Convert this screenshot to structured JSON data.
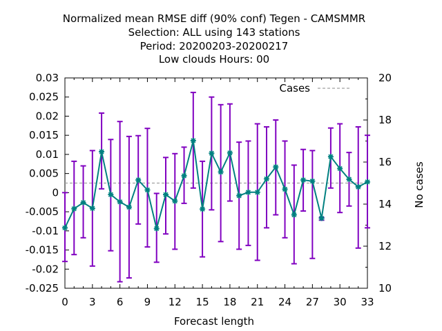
{
  "chart_data": {
    "type": "line",
    "title_lines": [
      "Normalized mean RMSE diff (90% conf) Tegen - CAMSMMR",
      "Selection: ALL using   143 stations",
      "Period: 20200203-20200217",
      "Low clouds   Hours:  00"
    ],
    "xlabel": "Forecast length",
    "ylabel_right": "No cases",
    "xlim": [
      0,
      33
    ],
    "ylim": [
      -0.025,
      0.03
    ],
    "y2lim": [
      10,
      20
    ],
    "x_ticks": [
      "0",
      "3",
      "6",
      "9",
      "12",
      "15",
      "18",
      "21",
      "24",
      "27",
      "30",
      "33"
    ],
    "y_ticks": [
      "0.03",
      "0.025",
      "0.02",
      "0.015",
      "0.01",
      "0.005",
      "0",
      "-0.005",
      "-0.01",
      "-0.015",
      "-0.02",
      "-0.025"
    ],
    "y2_ticks": [
      "20",
      "18",
      "16",
      "14",
      "12",
      "10"
    ],
    "legend": {
      "label": "Cases",
      "position": "top-right"
    },
    "cases_line_value": 0.0025,
    "colors": {
      "line": "#008080",
      "errorbar": "#8000c0",
      "cases": "#a0a0a0"
    },
    "series": [
      {
        "x": [
          0,
          1,
          2,
          3,
          4,
          5,
          6,
          7,
          8,
          9,
          10,
          11,
          12,
          13,
          14,
          15,
          16,
          17,
          18,
          19,
          20,
          21,
          22,
          23,
          24,
          25,
          26,
          27,
          28,
          29,
          30,
          31,
          32,
          33
        ],
        "y": [
          -0.0092,
          -0.0042,
          -0.0026,
          -0.0041,
          0.0107,
          -0.0005,
          -0.0024,
          -0.0038,
          0.0033,
          0.0007,
          -0.0094,
          -0.0005,
          -0.0022,
          0.0044,
          0.0136,
          -0.0043,
          0.0103,
          0.0054,
          0.0104,
          -0.0008,
          0.0001,
          0.0001,
          0.0036,
          0.0067,
          0.0009,
          -0.0058,
          0.0033,
          0.003,
          -0.0067,
          0.0094,
          0.0063,
          0.0035,
          0.0015,
          0.0028
        ],
        "err_low": [
          -0.018,
          -0.0162,
          -0.0118,
          -0.0192,
          0.001,
          -0.0152,
          -0.0233,
          -0.0223,
          -0.0082,
          -0.0142,
          -0.0182,
          -0.0108,
          -0.0148,
          -0.0028,
          0.0012,
          -0.0168,
          -0.0045,
          -0.0128,
          -0.0022,
          -0.0148,
          -0.0138,
          -0.0177,
          -0.0092,
          -0.0058,
          -0.0118,
          -0.0186,
          -0.0048,
          -0.0172,
          -0.0072,
          0.0012,
          -0.0052,
          -0.0035,
          -0.0145,
          -0.0092
        ],
        "err_high": [
          0.0,
          0.0082,
          0.007,
          0.011,
          0.0208,
          0.0139,
          0.0186,
          0.0147,
          0.0149,
          0.0168,
          -0.0002,
          0.0092,
          0.0102,
          0.0119,
          0.0262,
          0.0082,
          0.025,
          0.023,
          0.0232,
          0.0132,
          0.0135,
          0.018,
          0.0172,
          0.019,
          0.0135,
          0.0072,
          0.0113,
          0.011,
          -0.0065,
          0.0169,
          0.018,
          0.0105,
          0.0172,
          0.015
        ]
      }
    ]
  }
}
